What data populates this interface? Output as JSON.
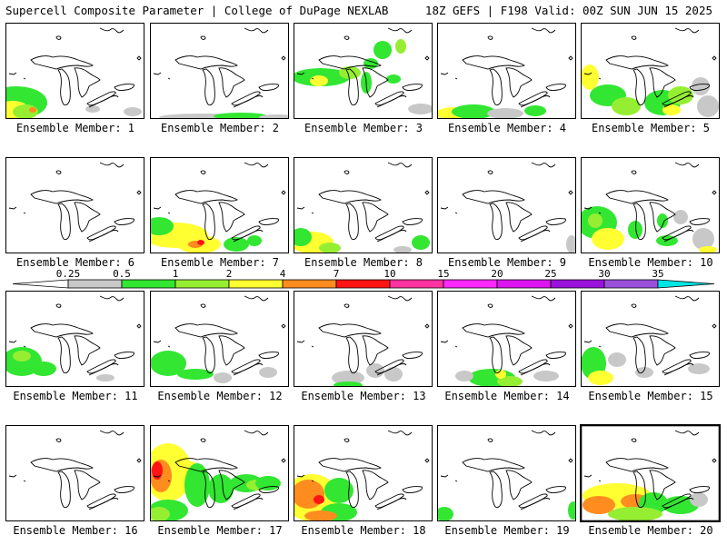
{
  "header": {
    "title_left": "Supercell Composite Parameter | College of DuPage NEXLAB",
    "title_right": "18Z GEFS | F198 Valid: 00Z SUN JUN 15 2025"
  },
  "colorbar": {
    "labels": [
      "0.25",
      "0.5",
      "1",
      "2",
      "4",
      "7",
      "10",
      "15",
      "20",
      "25",
      "30",
      "35"
    ],
    "colors": [
      "#c8c8c8",
      "#32e632",
      "#96ee32",
      "#ffff32",
      "#ff8c1e",
      "#ff1414",
      "#ff32a0",
      "#ff28ff",
      "#dc14f0",
      "#9b12dc",
      "#9b50dc",
      "#00e6e6"
    ]
  },
  "panels": [
    {
      "label": "Ensemble Member: 1"
    },
    {
      "label": "Ensemble Member: 2"
    },
    {
      "label": "Ensemble Member: 3"
    },
    {
      "label": "Ensemble Member: 4"
    },
    {
      "label": "Ensemble Member: 5"
    },
    {
      "label": "Ensemble Member: 6"
    },
    {
      "label": "Ensemble Member: 7"
    },
    {
      "label": "Ensemble Member: 8"
    },
    {
      "label": "Ensemble Member: 9"
    },
    {
      "label": "Ensemble Member: 10"
    },
    {
      "label": "Ensemble Member: 11"
    },
    {
      "label": "Ensemble Member: 12"
    },
    {
      "label": "Ensemble Member: 13"
    },
    {
      "label": "Ensemble Member: 14"
    },
    {
      "label": "Ensemble Member: 15"
    },
    {
      "label": "Ensemble Member: 16"
    },
    {
      "label": "Ensemble Member: 17"
    },
    {
      "label": "Ensemble Member: 18"
    },
    {
      "label": "Ensemble Member: 19"
    },
    {
      "label": "Ensemble Member: 20"
    }
  ]
}
